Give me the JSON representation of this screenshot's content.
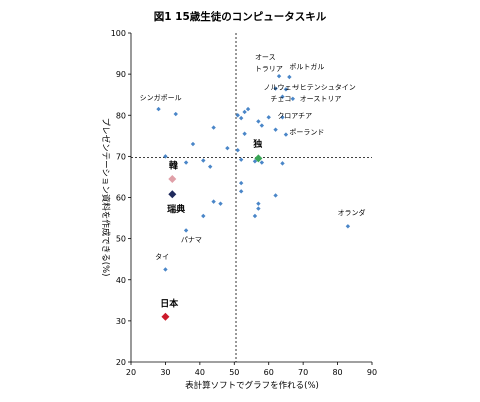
{
  "chart_data": {
    "type": "scatter",
    "title": "図1 15歳生徒のコンピュータスキル",
    "xlabel": "表計算ソフトでグラフを作れる(%)",
    "ylabel": "プレゼンテーション資料を作成できる(%)",
    "xlim": [
      20,
      90
    ],
    "ylim": [
      20,
      100
    ],
    "xticks": [
      "20",
      "30",
      "40",
      "50",
      "60",
      "70",
      "80",
      "90"
    ],
    "yticks": [
      "20",
      "30",
      "40",
      "50",
      "60",
      "70",
      "80",
      "90",
      "100"
    ],
    "reference_lines": {
      "x": 50.5,
      "y": 69.7
    },
    "series": [
      {
        "points": [
          {
            "x": 63,
            "y": 89.5
          },
          {
            "x": 66,
            "y": 89.3
          },
          {
            "x": 62,
            "y": 86.5
          },
          {
            "x": 65,
            "y": 86.3
          },
          {
            "x": 64,
            "y": 84.5
          },
          {
            "x": 67,
            "y": 84.0
          },
          {
            "x": 28,
            "y": 81.5
          },
          {
            "x": 33,
            "y": 80.3
          },
          {
            "x": 54,
            "y": 81.5
          },
          {
            "x": 53,
            "y": 80.8
          },
          {
            "x": 51,
            "y": 80.0
          },
          {
            "x": 52,
            "y": 79.3
          },
          {
            "x": 60,
            "y": 79.5
          },
          {
            "x": 64,
            "y": 79.5
          },
          {
            "x": 57,
            "y": 78.5
          },
          {
            "x": 58,
            "y": 77.5
          },
          {
            "x": 44,
            "y": 77.0
          },
          {
            "x": 62,
            "y": 76.5
          },
          {
            "x": 53,
            "y": 75.5
          },
          {
            "x": 65,
            "y": 75.3
          },
          {
            "x": 38,
            "y": 73.0
          },
          {
            "x": 48,
            "y": 72.0
          },
          {
            "x": 51,
            "y": 71.5
          },
          {
            "x": 30,
            "y": 70.0
          },
          {
            "x": 36,
            "y": 68.5
          },
          {
            "x": 41,
            "y": 69.0
          },
          {
            "x": 52,
            "y": 69.2
          },
          {
            "x": 56,
            "y": 68.8
          },
          {
            "x": 58,
            "y": 68.5
          },
          {
            "x": 64,
            "y": 68.3
          },
          {
            "x": 43,
            "y": 67.5
          },
          {
            "x": 52,
            "y": 63.5
          },
          {
            "x": 52,
            "y": 61.5
          },
          {
            "x": 62,
            "y": 60.5
          },
          {
            "x": 46,
            "y": 58.5
          },
          {
            "x": 44,
            "y": 59.0
          },
          {
            "x": 57,
            "y": 58.5
          },
          {
            "x": 57,
            "y": 57.3
          },
          {
            "x": 56,
            "y": 55.5
          },
          {
            "x": 41,
            "y": 55.5
          },
          {
            "x": 83,
            "y": 53.0
          },
          {
            "x": 36,
            "y": 52.0
          },
          {
            "x": 30,
            "y": 42.5
          }
        ]
      }
    ],
    "point_labels": [
      {
        "text": "オース",
        "x": 56,
        "y": 93.5
      },
      {
        "text": "トラリア",
        "x": 56,
        "y": 90.8
      },
      {
        "text": "ポルトガル",
        "x": 66,
        "y": 91.2
      },
      {
        "text": "ノルウェー",
        "x": 58.5,
        "y": 86.3
      },
      {
        "text": "リヒテンシュタイン",
        "x": 67,
        "y": 86.3
      },
      {
        "text": "チェコ",
        "x": 60.5,
        "y": 83.5
      },
      {
        "text": "オーストリア",
        "x": 69,
        "y": 83.5
      },
      {
        "text": "シンガポール",
        "x": 22.5,
        "y": 83.7
      },
      {
        "text": "クロアチア",
        "x": 62.5,
        "y": 79.3
      },
      {
        "text": "ポーランド",
        "x": 66,
        "y": 75.3
      },
      {
        "text": "オランダ",
        "x": 80,
        "y": 55.7
      },
      {
        "text": "パナマ",
        "x": 34.5,
        "y": 49.2
      },
      {
        "text": "タイ",
        "x": 27,
        "y": 45.0
      }
    ],
    "highlights": [
      {
        "label": "独",
        "x": 57,
        "y": 69.5,
        "label_x": 55.5,
        "label_y": 72.3,
        "color": "#3aa655"
      },
      {
        "label": "韓",
        "x": 32,
        "y": 64.5,
        "label_x": 31,
        "label_y": 67.0,
        "color": "#e0a0a8"
      },
      {
        "label": "瑞典",
        "x": 32,
        "y": 60.8,
        "label_x": 30.5,
        "label_y": 56.5,
        "color": "#1f2a5c"
      },
      {
        "label": "日本",
        "x": 30,
        "y": 31.0,
        "label_x": 28.5,
        "label_y": 33.5,
        "color": "#cc1a2a"
      }
    ],
    "colors": {
      "point": "#4a86c8",
      "axis": "#000000",
      "reference_line": "#000000"
    }
  }
}
